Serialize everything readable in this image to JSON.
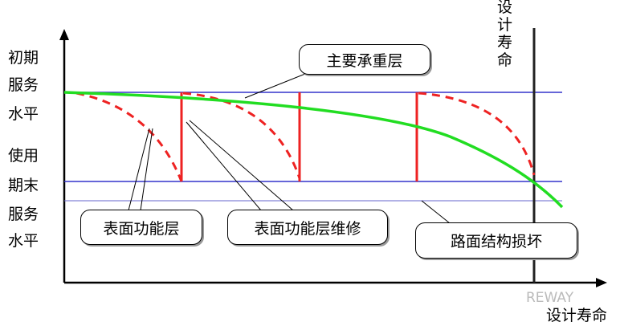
{
  "y_labels": {
    "initial": [
      "初期",
      "服务",
      "水平"
    ],
    "terminal": [
      "使用",
      "期末",
      "服务",
      "水平"
    ]
  },
  "top_label": [
    "设",
    "计",
    "寿",
    "命"
  ],
  "x_axis_label": "设计寿命",
  "callouts": {
    "main_layer": "主要承重层",
    "surface_layer": "表面功能层",
    "surface_repair": "表面功能层维修",
    "structural_failure": "路面结构损坏"
  },
  "watermark": "REWAY",
  "colors": {
    "level_lines": "#3333cc",
    "structure_curve": "#22dd22",
    "surface_curve": "#ee2222",
    "axes": "#000000"
  }
}
